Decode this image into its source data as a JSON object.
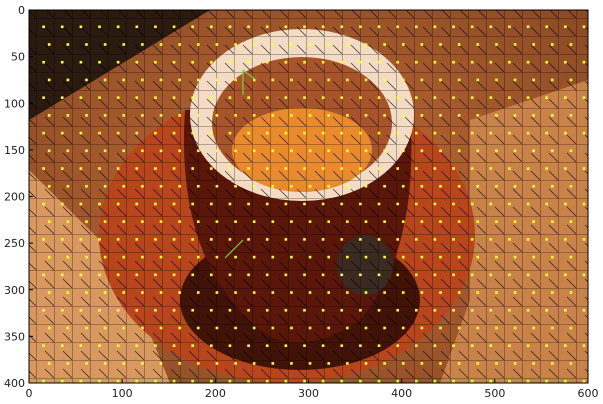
{
  "figure": {
    "image_description_alt": "superpixel segmentation of a coffee cup on a saucer",
    "xlim": [
      0,
      600
    ],
    "ylim": [
      400,
      0
    ],
    "x_ticks": [
      "0",
      "100",
      "200",
      "300",
      "400",
      "500",
      "600"
    ],
    "y_ticks": [
      "0",
      "50",
      "100",
      "150",
      "200",
      "250",
      "300",
      "350",
      "400"
    ],
    "colors": {
      "dark_background": "#2a1a10",
      "saucer": "#b8451c",
      "cup_body": "#5a1608",
      "cup_rim": "#f4dcc4",
      "coffee": "#e98a2c",
      "table": "#c07a3e",
      "cell_border": "#000000",
      "seed_point": "#ffff33",
      "marker_green": "#7ad23a"
    }
  }
}
